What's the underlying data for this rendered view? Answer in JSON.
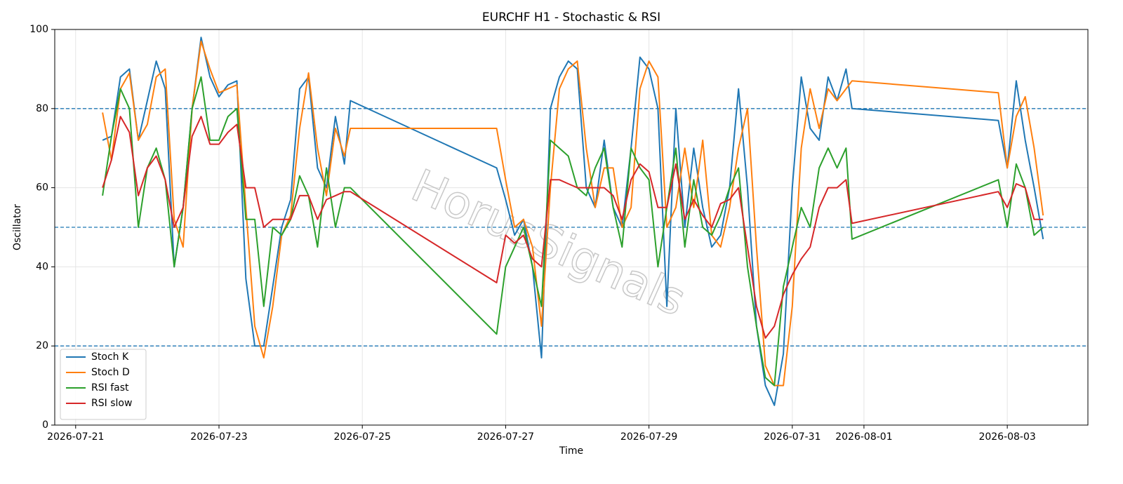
{
  "chart_data": {
    "type": "line",
    "title": "EURCHF H1 - Stochastic & RSI",
    "x_label": "Time",
    "y_label": "Oscillator",
    "watermark": "HorusSignals",
    "x": [
      "2026-07-21T09:00",
      "2026-07-21T12:00",
      "2026-07-21T15:00",
      "2026-07-21T18:00",
      "2026-07-21T21:00",
      "2026-07-22T00:00",
      "2026-07-22T03:00",
      "2026-07-22T06:00",
      "2026-07-22T09:00",
      "2026-07-22T12:00",
      "2026-07-22T15:00",
      "2026-07-22T18:00",
      "2026-07-22T21:00",
      "2026-07-23T00:00",
      "2026-07-23T03:00",
      "2026-07-23T06:00",
      "2026-07-23T09:00",
      "2026-07-23T12:00",
      "2026-07-23T15:00",
      "2026-07-23T18:00",
      "2026-07-23T21:00",
      "2026-07-24T00:00",
      "2026-07-24T03:00",
      "2026-07-24T06:00",
      "2026-07-24T09:00",
      "2026-07-24T12:00",
      "2026-07-24T15:00",
      "2026-07-24T18:00",
      "2026-07-24T20:00",
      "2026-07-26T21:00",
      "2026-07-27T00:00",
      "2026-07-27T03:00",
      "2026-07-27T06:00",
      "2026-07-27T09:00",
      "2026-07-27T12:00",
      "2026-07-27T15:00",
      "2026-07-27T18:00",
      "2026-07-27T21:00",
      "2026-07-28T00:00",
      "2026-07-28T03:00",
      "2026-07-28T06:00",
      "2026-07-28T09:00",
      "2026-07-28T12:00",
      "2026-07-28T15:00",
      "2026-07-28T18:00",
      "2026-07-28T21:00",
      "2026-07-29T00:00",
      "2026-07-29T03:00",
      "2026-07-29T06:00",
      "2026-07-29T09:00",
      "2026-07-29T12:00",
      "2026-07-29T15:00",
      "2026-07-29T18:00",
      "2026-07-29T21:00",
      "2026-07-30T00:00",
      "2026-07-30T03:00",
      "2026-07-30T06:00",
      "2026-07-30T09:00",
      "2026-07-30T12:00",
      "2026-07-30T15:00",
      "2026-07-30T18:00",
      "2026-07-30T21:00",
      "2026-07-31T00:00",
      "2026-07-31T03:00",
      "2026-07-31T06:00",
      "2026-07-31T09:00",
      "2026-07-31T12:00",
      "2026-07-31T15:00",
      "2026-07-31T18:00",
      "2026-07-31T20:00",
      "2026-08-02T21:00",
      "2026-08-03T00:00",
      "2026-08-03T03:00",
      "2026-08-03T06:00",
      "2026-08-03T09:00",
      "2026-08-03T12:00"
    ],
    "series": [
      {
        "name": "Stoch K",
        "color": "#1f77b4",
        "values": [
          72,
          73,
          88,
          90,
          72,
          82,
          92,
          85,
          40,
          55,
          80,
          98,
          88,
          83,
          86,
          87,
          37,
          20,
          20,
          35,
          50,
          57,
          85,
          88,
          65,
          60,
          78,
          66,
          82,
          65,
          57,
          48,
          52,
          40,
          17,
          80,
          88,
          92,
          90,
          60,
          55,
          72,
          55,
          50,
          70,
          93,
          90,
          80,
          30,
          80,
          50,
          70,
          55,
          45,
          48,
          60,
          85,
          60,
          25,
          10,
          5,
          18,
          60,
          88,
          75,
          72,
          88,
          82,
          90,
          80,
          77,
          65,
          87,
          72,
          60,
          47
        ]
      },
      {
        "name": "Stoch D",
        "color": "#ff7f0e",
        "values": [
          79,
          67,
          85,
          89,
          72,
          76,
          88,
          90,
          52,
          45,
          80,
          97,
          90,
          84,
          85,
          86,
          55,
          25,
          17,
          30,
          48,
          53,
          75,
          89,
          70,
          58,
          75,
          68,
          75,
          75,
          62,
          50,
          52,
          45,
          25,
          60,
          85,
          90,
          92,
          70,
          55,
          65,
          65,
          50,
          55,
          85,
          92,
          88,
          50,
          55,
          70,
          55,
          72,
          48,
          45,
          55,
          70,
          80,
          45,
          15,
          10,
          10,
          30,
          70,
          85,
          75,
          85,
          82,
          85,
          87,
          84,
          65,
          78,
          83,
          70,
          53
        ]
      },
      {
        "name": "RSI fast",
        "color": "#2ca02c",
        "values": [
          58,
          73,
          85,
          80,
          50,
          65,
          70,
          62,
          40,
          55,
          80,
          88,
          72,
          72,
          78,
          80,
          52,
          52,
          30,
          50,
          48,
          52,
          63,
          58,
          45,
          65,
          50,
          60,
          60,
          23,
          40,
          45,
          50,
          40,
          30,
          72,
          70,
          68,
          60,
          58,
          65,
          70,
          55,
          45,
          70,
          65,
          62,
          40,
          55,
          70,
          45,
          62,
          50,
          48,
          53,
          60,
          65,
          40,
          25,
          12,
          10,
          35,
          45,
          55,
          50,
          65,
          70,
          65,
          70,
          47,
          62,
          50,
          66,
          60,
          48,
          50
        ]
      },
      {
        "name": "RSI slow",
        "color": "#d62728",
        "values": [
          60,
          67,
          78,
          74,
          58,
          65,
          68,
          62,
          50,
          55,
          73,
          78,
          71,
          71,
          74,
          76,
          60,
          60,
          50,
          52,
          52,
          52,
          58,
          58,
          52,
          57,
          58,
          59,
          59,
          36,
          48,
          46,
          48,
          42,
          40,
          62,
          62,
          61,
          60,
          60,
          60,
          60,
          58,
          52,
          62,
          66,
          64,
          55,
          55,
          66,
          52,
          57,
          53,
          50,
          56,
          57,
          60,
          45,
          30,
          22,
          25,
          33,
          38,
          42,
          45,
          55,
          60,
          60,
          62,
          51,
          59,
          55,
          61,
          60,
          52,
          52
        ]
      }
    ],
    "hlines": [
      20,
      50,
      80
    ],
    "hline_color": "#1f77b4",
    "xlim": [
      "2026-07-20T17:00",
      "2026-08-04T03:00"
    ],
    "xticks": [
      "2026-07-21",
      "2026-07-23",
      "2026-07-25",
      "2026-07-27",
      "2026-07-29",
      "2026-07-31",
      "2026-08-01",
      "2026-08-03"
    ],
    "ylim": [
      0,
      100
    ],
    "yticks": [
      0,
      20,
      40,
      60,
      80,
      100
    ],
    "grid": true,
    "legend": "lower left"
  }
}
